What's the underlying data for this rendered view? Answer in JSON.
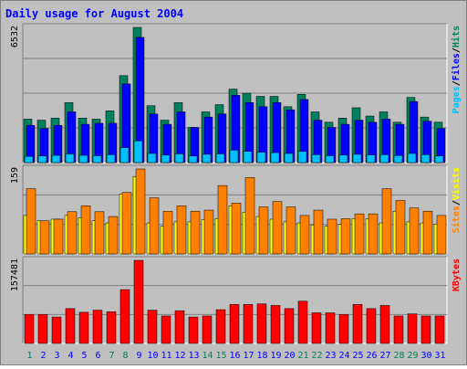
{
  "colors": {
    "page_bg": "#C0C0C0",
    "plot_bg": "#C0C0C0",
    "grid": "#808080",
    "title": "#0000FF",
    "hits": "#00805C",
    "files": "#0000FF",
    "pages": "#00C0FF",
    "visits": "#FFFF00",
    "sites": "#FF8000",
    "kbytes": "#FF0000",
    "day_weekday": "#0000FF",
    "day_weekend": "#00805C"
  },
  "chart_data": {
    "type": "bar",
    "title": "Daily usage for August 2004",
    "days": [
      "1",
      "2",
      "3",
      "4",
      "5",
      "6",
      "7",
      "8",
      "9",
      "10",
      "11",
      "12",
      "13",
      "14",
      "15",
      "16",
      "17",
      "18",
      "19",
      "20",
      "21",
      "22",
      "23",
      "24",
      "25",
      "26",
      "27",
      "28",
      "29",
      "30",
      "31"
    ],
    "weekend_days": [
      "1",
      "7",
      "8",
      "14",
      "15",
      "21",
      "22",
      "28",
      "29"
    ],
    "panels": [
      {
        "name": "hits-files-pages",
        "ymax": 6532,
        "ymax_label": "6532",
        "legend": [
          {
            "text": "Pages",
            "color_key": "pages"
          },
          {
            "text": "/",
            "color_key": "sep"
          },
          {
            "text": "Files",
            "color_key": "files"
          },
          {
            "text": "/",
            "color_key": "sep"
          },
          {
            "text": "Hits",
            "color_key": "hits"
          }
        ],
        "series": [
          {
            "name": "Hits",
            "color_key": "hits",
            "values": [
              2100,
              2050,
              2150,
              2900,
              2150,
              2100,
              2500,
              4200,
              6532,
              2750,
              2050,
              2900,
              1700,
              2450,
              2800,
              3550,
              3350,
              3200,
              3200,
              2700,
              3300,
              2450,
              1950,
              2150,
              2650,
              2250,
              2450,
              1950,
              3150,
              2200,
              1950
            ]
          },
          {
            "name": "Files",
            "color_key": "files",
            "values": [
              1800,
              1650,
              1800,
              2450,
              1850,
              1900,
              1900,
              3800,
              6050,
              2350,
              1850,
              2450,
              1700,
              2200,
              2350,
              3250,
              2900,
              2700,
              2900,
              2550,
              3050,
              2050,
              1700,
              1850,
              2050,
              1950,
              2100,
              1850,
              2950,
              2000,
              1650
            ]
          },
          {
            "name": "Pages",
            "color_key": "pages",
            "values": [
              300,
              320,
              350,
              420,
              350,
              330,
              380,
              720,
              1050,
              440,
              360,
              420,
              320,
              400,
              420,
              600,
              540,
              500,
              480,
              440,
              540,
              380,
              330,
              360,
              400,
              370,
              380,
              340,
              440,
              380,
              320
            ]
          }
        ]
      },
      {
        "name": "sites-visits",
        "ymax": 159,
        "ymax_label": "159",
        "legend": [
          {
            "text": "Sites",
            "color_key": "sites"
          },
          {
            "text": "/",
            "color_key": "sep"
          },
          {
            "text": "Visits",
            "color_key": "visits"
          }
        ],
        "series": [
          {
            "name": "Visits",
            "color_key": "visits",
            "values": [
              72,
              62,
              65,
              72,
              68,
              62,
              58,
              112,
              145,
              58,
              52,
              60,
              60,
              64,
              66,
              90,
              78,
              70,
              65,
              60,
              58,
              54,
              52,
              55,
              66,
              66,
              58,
              80,
              60,
              58,
              56
            ]
          },
          {
            "name": "Sites",
            "color_key": "sites",
            "values": [
              122,
              62,
              65,
              79,
              90,
              79,
              70,
              115,
              159,
              105,
              80,
              90,
              80,
              82,
              128,
              95,
              143,
              88,
              98,
              88,
              72,
              82,
              65,
              66,
              75,
              75,
              122,
              100,
              86,
              80,
              72
            ]
          }
        ]
      },
      {
        "name": "kbytes",
        "ymax": 157481,
        "ymax_label": "157481",
        "legend": [
          {
            "text": "KBytes",
            "color_key": "kbytes"
          }
        ],
        "series": [
          {
            "name": "KBytes",
            "color_key": "kbytes",
            "values": [
              55000,
              55000,
              50000,
              66000,
              59000,
              63000,
              60000,
              102000,
              157481,
              63000,
              52000,
              62000,
              50000,
              52000,
              64000,
              74000,
              74000,
              75000,
              72000,
              66000,
              80000,
              58000,
              58000,
              55000,
              74000,
              66000,
              72000,
              52000,
              56000,
              52000,
              52000
            ]
          }
        ]
      }
    ]
  }
}
